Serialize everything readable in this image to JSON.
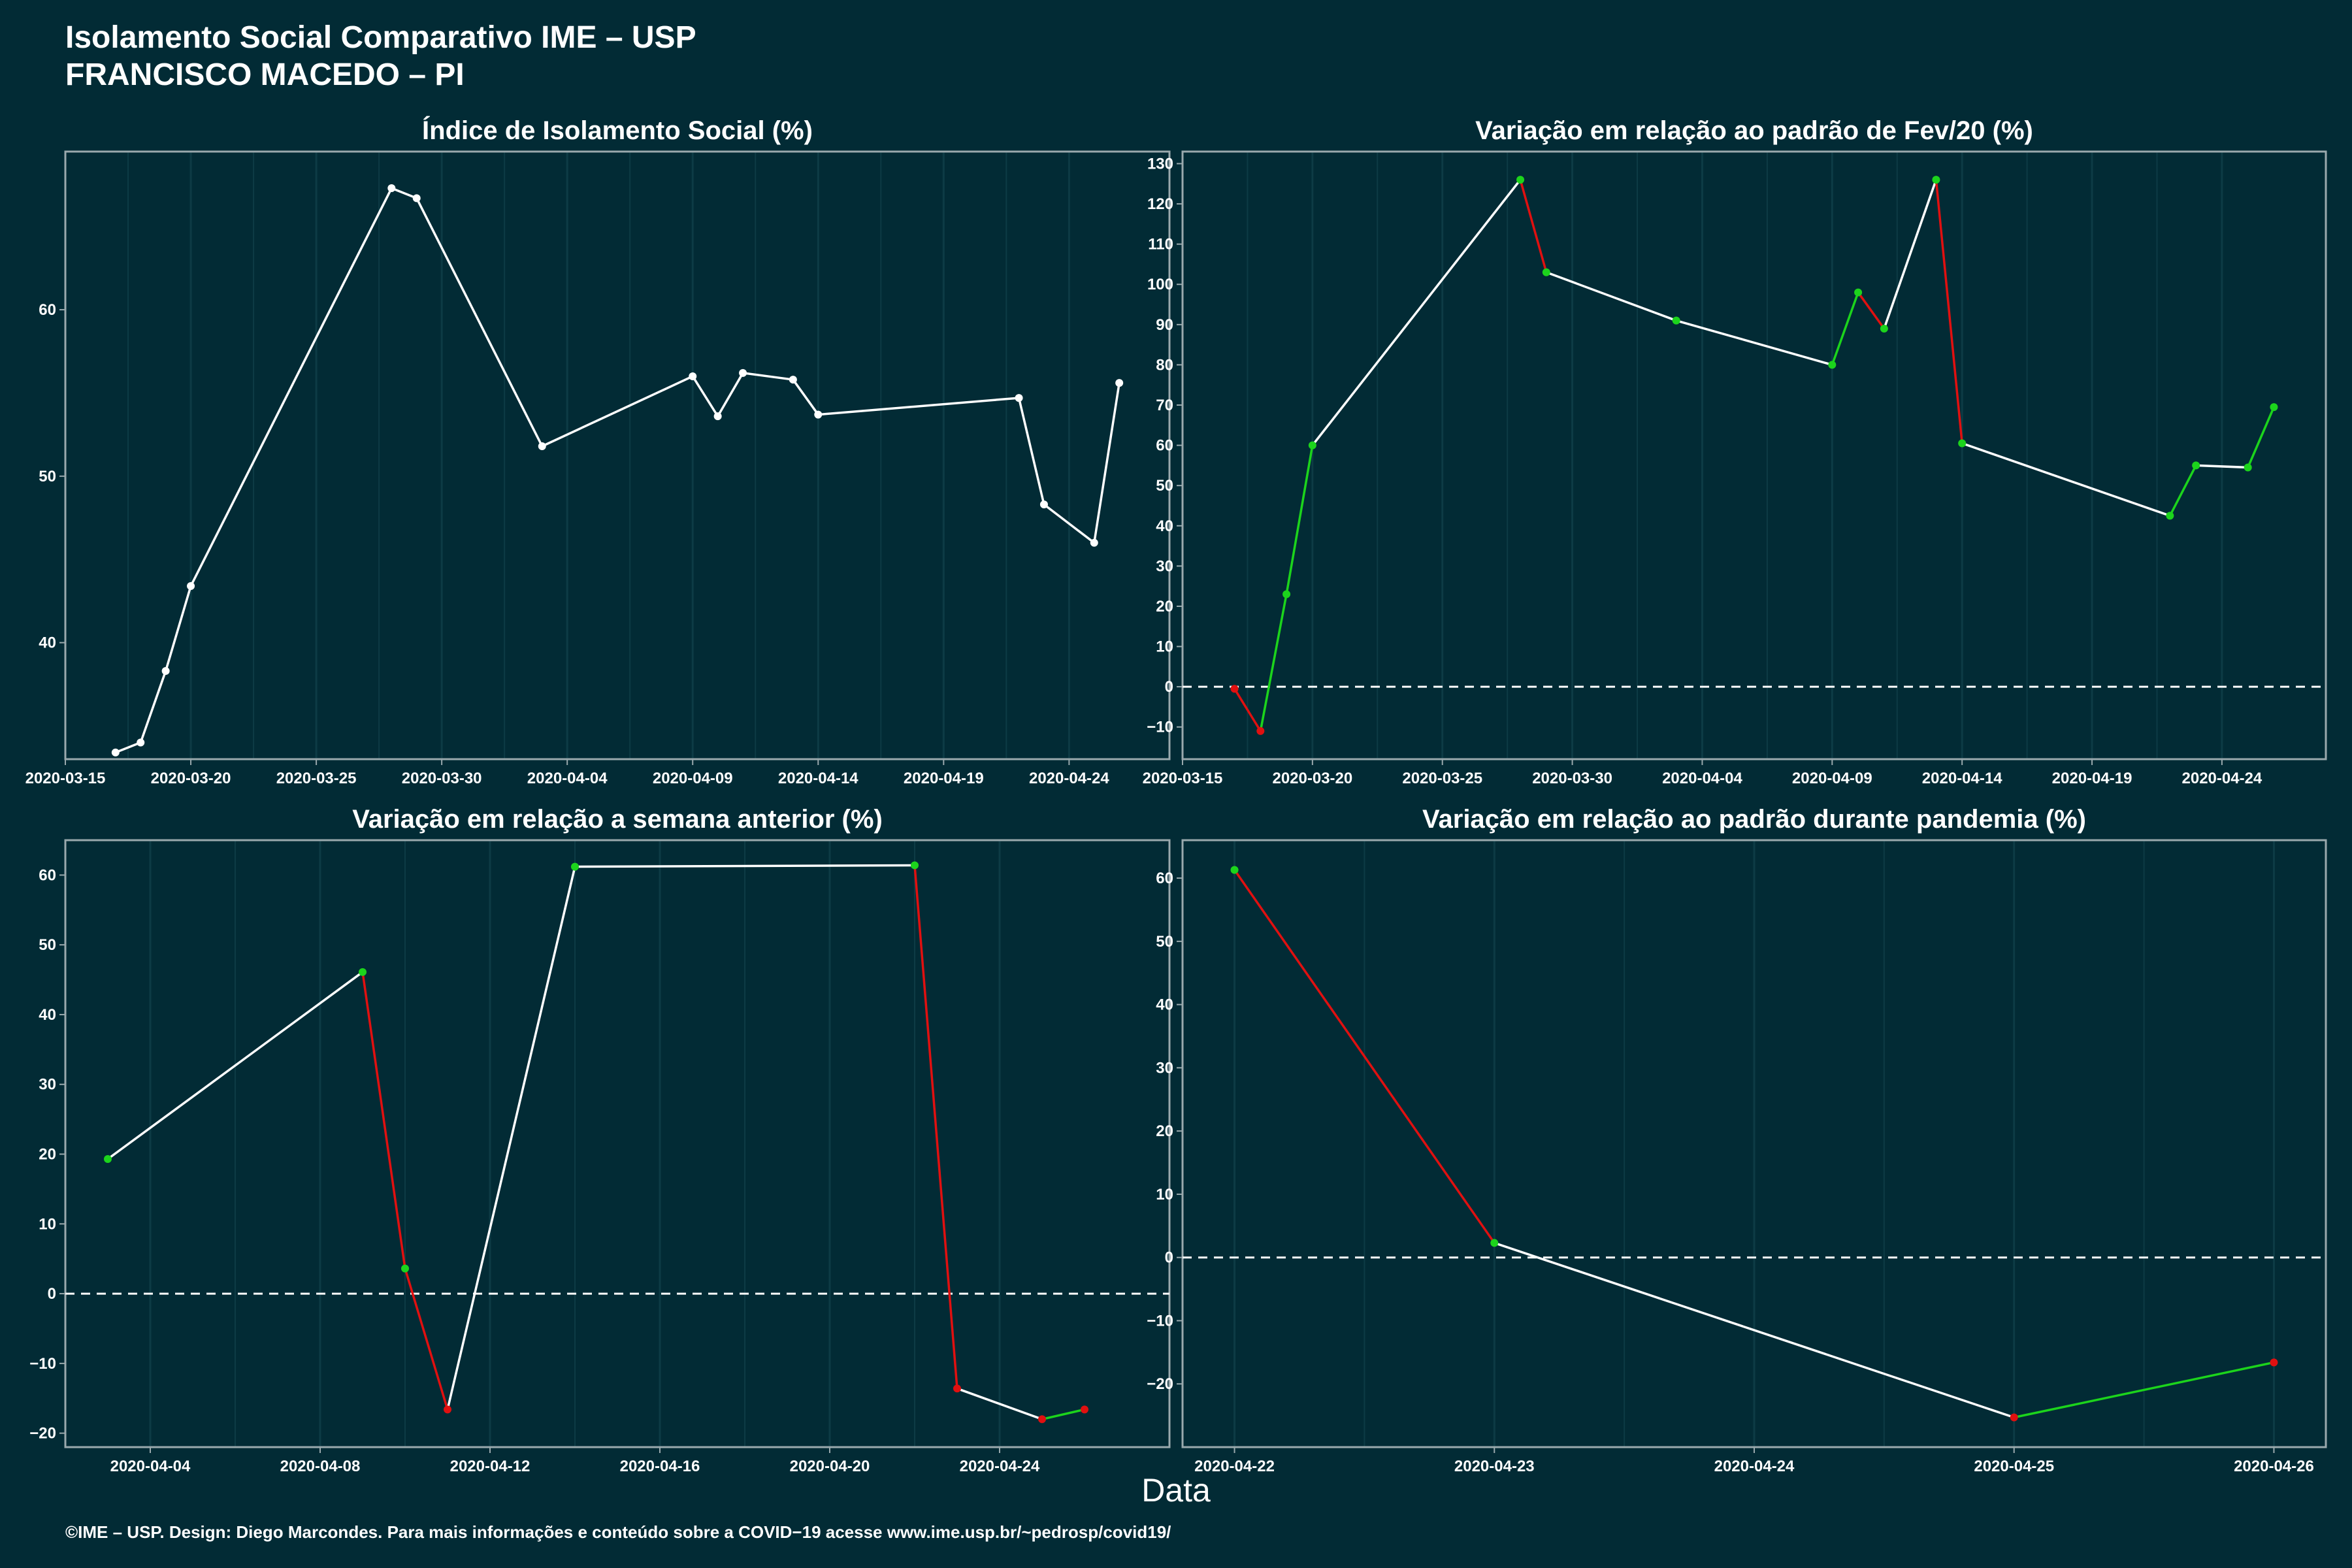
{
  "header": {
    "title_line1": "Isolamento Social Comparativo IME – USP",
    "title_line2": "FRANCISCO MACEDO – PI"
  },
  "xlabel": "Data",
  "footer": "©IME – USP. Design: Diego Marcondes. Para mais informações e conteúdo sobre a COVID−19 acesse www.ime.usp.br/~pedrosp/covid19/",
  "colors": {
    "background": "#022b35",
    "axis": "#9aa9ad",
    "grid": "#0d3b45",
    "line_neutral": "#ffffff",
    "increase": "#1cd41c",
    "decrease": "#e01010"
  },
  "chart_data": [
    {
      "id": "isolamento",
      "type": "line",
      "title": "Índice de Isolamento Social (%)",
      "xlim": [
        "2020-03-15",
        "2020-04-28"
      ],
      "ylim": [
        33,
        69.5
      ],
      "x_ticks": [
        "2020-03-15",
        "2020-03-20",
        "2020-03-25",
        "2020-03-30",
        "2020-04-04",
        "2020-04-09",
        "2020-04-14",
        "2020-04-19",
        "2020-04-24"
      ],
      "y_ticks": [
        40,
        50,
        60
      ],
      "zero_line": false,
      "colored": false,
      "x": [
        "2020-03-17",
        "2020-03-18",
        "2020-03-19",
        "2020-03-20",
        "2020-03-28",
        "2020-03-29",
        "2020-04-03",
        "2020-04-09",
        "2020-04-10",
        "2020-04-11",
        "2020-04-13",
        "2020-04-14",
        "2020-04-22",
        "2020-04-23",
        "2020-04-25",
        "2020-04-26"
      ],
      "y": [
        33.4,
        34.0,
        38.3,
        43.4,
        67.3,
        66.7,
        51.8,
        56.0,
        53.6,
        56.2,
        55.8,
        53.7,
        54.7,
        48.3,
        46.0,
        55.6
      ]
    },
    {
      "id": "fev20",
      "type": "line",
      "title": "Variação em relação ao padrão de Fev/20 (%)",
      "xlim": [
        "2020-03-15",
        "2020-04-28"
      ],
      "ylim": [
        -18,
        133
      ],
      "x_ticks": [
        "2020-03-15",
        "2020-03-20",
        "2020-03-25",
        "2020-03-30",
        "2020-04-04",
        "2020-04-09",
        "2020-04-14",
        "2020-04-19",
        "2020-04-24"
      ],
      "y_ticks": [
        -10,
        0,
        10,
        20,
        30,
        40,
        50,
        60,
        70,
        80,
        90,
        100,
        110,
        120,
        130
      ],
      "zero_line": true,
      "colored": true,
      "x": [
        "2020-03-17",
        "2020-03-18",
        "2020-03-19",
        "2020-03-20",
        "2020-03-28",
        "2020-03-29",
        "2020-04-03",
        "2020-04-09",
        "2020-04-10",
        "2020-04-11",
        "2020-04-13",
        "2020-04-14",
        "2020-04-22",
        "2020-04-23",
        "2020-04-25",
        "2020-04-26"
      ],
      "y": [
        -0.5,
        -11,
        23,
        60,
        126,
        103,
        91,
        80,
        98,
        89,
        126,
        60.5,
        42.5,
        55,
        54.5,
        69.5
      ]
    },
    {
      "id": "semana",
      "type": "line",
      "title": "Variação em relação a semana anterior (%)",
      "xlim": [
        "2020-04-02",
        "2020-04-28"
      ],
      "ylim": [
        -22,
        65
      ],
      "x_ticks": [
        "2020-04-04",
        "2020-04-08",
        "2020-04-12",
        "2020-04-16",
        "2020-04-20",
        "2020-04-24"
      ],
      "y_ticks": [
        -20,
        -10,
        0,
        10,
        20,
        30,
        40,
        50,
        60
      ],
      "zero_line": true,
      "colored": true,
      "x": [
        "2020-04-03",
        "2020-04-09",
        "2020-04-10",
        "2020-04-11",
        "2020-04-14",
        "2020-04-22",
        "2020-04-23",
        "2020-04-25",
        "2020-04-26"
      ],
      "y": [
        19.3,
        46.1,
        3.6,
        -16.6,
        61.2,
        61.4,
        -13.6,
        -18.0,
        -16.6
      ]
    },
    {
      "id": "pandemia",
      "type": "line",
      "title": "Variação em relação ao padrão durante pandemia (%)",
      "xlim": [
        "2020-04-21.8",
        "2020-04-26.2"
      ],
      "ylim": [
        -30,
        66
      ],
      "x_ticks": [
        "2020-04-22",
        "2020-04-23",
        "2020-04-24",
        "2020-04-25",
        "2020-04-26"
      ],
      "y_ticks": [
        -20,
        -10,
        0,
        10,
        20,
        30,
        40,
        50,
        60
      ],
      "zero_line": true,
      "colored": true,
      "x": [
        "2020-04-22",
        "2020-04-23",
        "2020-04-25",
        "2020-04-26"
      ],
      "y": [
        61.3,
        2.3,
        -25.3,
        -16.6
      ]
    }
  ]
}
